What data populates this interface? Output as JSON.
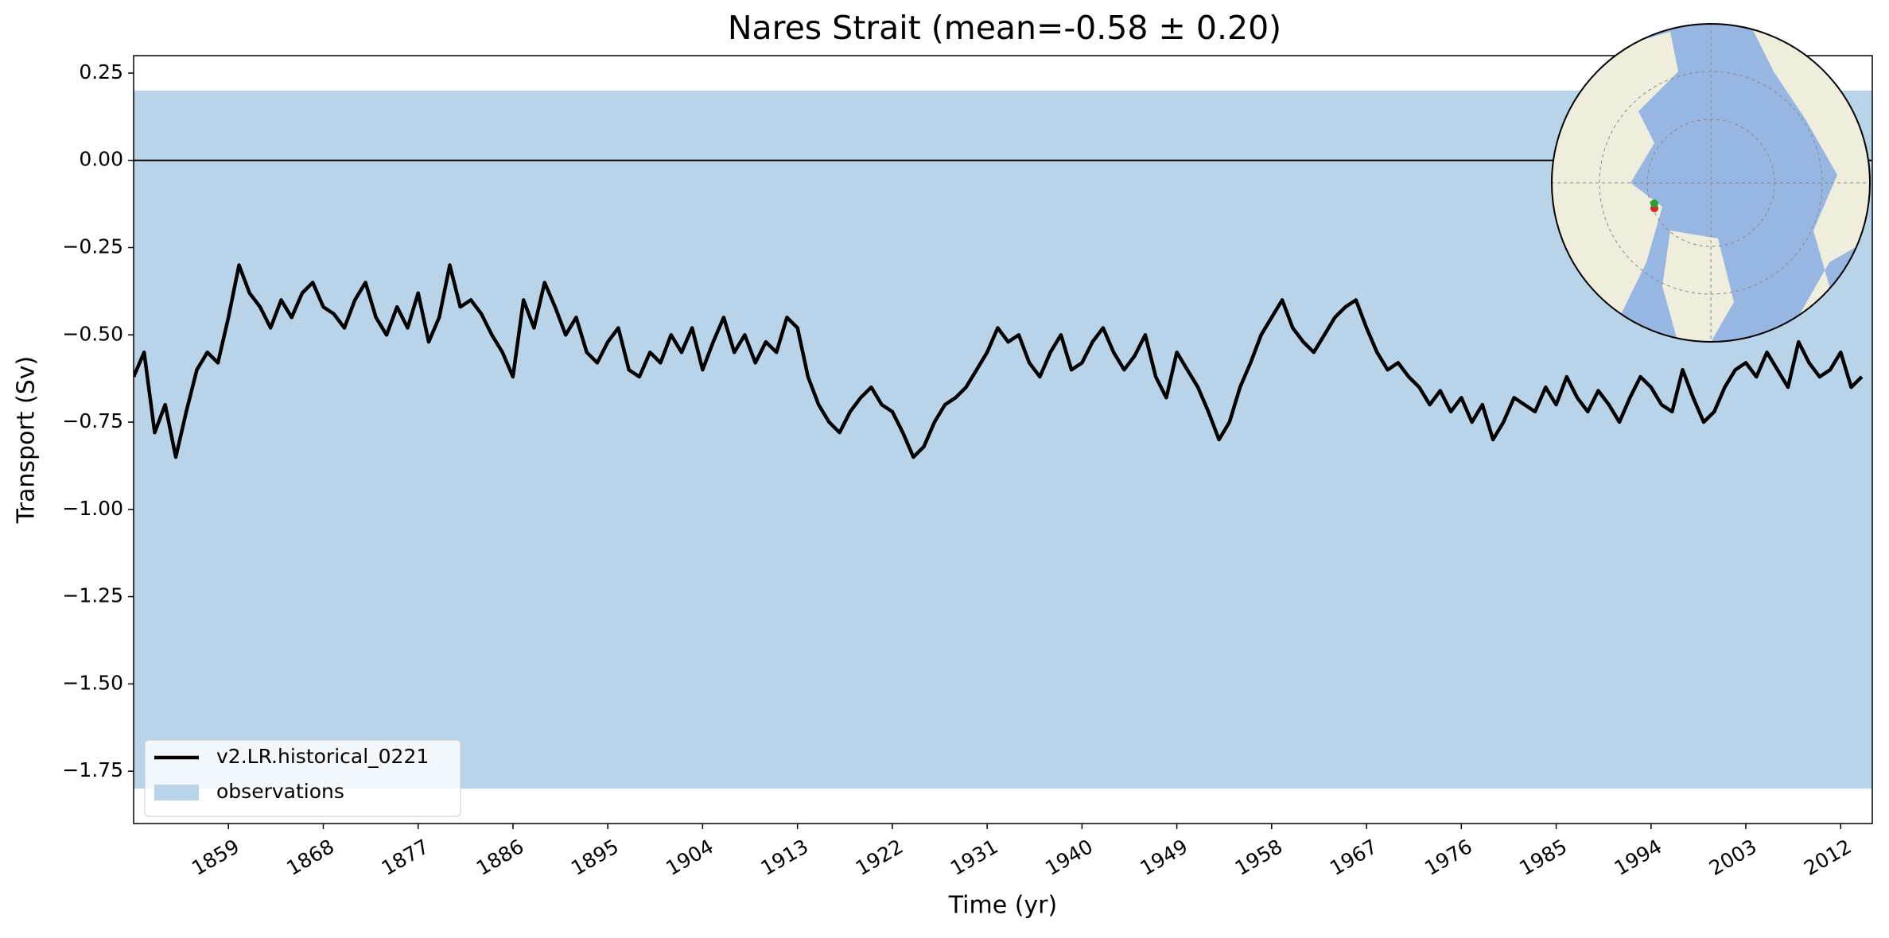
{
  "chart_data": {
    "type": "line",
    "title": "Nares Strait (mean=-0.58 ± 0.20)",
    "x_label": "Time (yr)",
    "y_label": "Transport (Sv)",
    "xlim": [
      1850,
      2015
    ],
    "ylim": [
      -1.9,
      0.3
    ],
    "xticks": [
      1859,
      1868,
      1877,
      1886,
      1895,
      1904,
      1913,
      1922,
      1931,
      1940,
      1949,
      1958,
      1967,
      1976,
      1985,
      1994,
      2003,
      2012
    ],
    "yticks": [
      0.25,
      {
        "value": 0,
        "label": "0.00"
      },
      {
        "value": -0.25,
        "label": "−0.25"
      },
      {
        "value": -0.5,
        "label": "−0.50"
      },
      {
        "value": -0.75,
        "label": "−0.75"
      },
      {
        "value": -1,
        "label": "−1.00"
      },
      {
        "value": -1.25,
        "label": "−1.25"
      },
      {
        "value": -1.5,
        "label": "−1.50"
      },
      {
        "value": -1.75,
        "label": "−1.75"
      }
    ],
    "hline": 0,
    "legend": "lower left",
    "band": {
      "name": "observations",
      "color": "#b9d4e8",
      "range": [
        -1.8,
        0.2
      ]
    },
    "x": [
      1850,
      1851,
      1852,
      1853,
      1854,
      1855,
      1856,
      1857,
      1858,
      1859,
      1860,
      1861,
      1862,
      1863,
      1864,
      1865,
      1866,
      1867,
      1868,
      1869,
      1870,
      1871,
      1872,
      1873,
      1874,
      1875,
      1876,
      1877,
      1878,
      1879,
      1880,
      1881,
      1882,
      1883,
      1884,
      1885,
      1886,
      1887,
      1888,
      1889,
      1890,
      1891,
      1892,
      1893,
      1894,
      1895,
      1896,
      1897,
      1898,
      1899,
      1900,
      1901,
      1902,
      1903,
      1904,
      1905,
      1906,
      1907,
      1908,
      1909,
      1910,
      1911,
      1912,
      1913,
      1914,
      1915,
      1916,
      1917,
      1918,
      1919,
      1920,
      1921,
      1922,
      1923,
      1924,
      1925,
      1926,
      1927,
      1928,
      1929,
      1930,
      1931,
      1932,
      1933,
      1934,
      1935,
      1936,
      1937,
      1938,
      1939,
      1940,
      1941,
      1942,
      1943,
      1944,
      1945,
      1946,
      1947,
      1948,
      1949,
      1950,
      1951,
      1952,
      1953,
      1954,
      1955,
      1956,
      1957,
      1958,
      1959,
      1960,
      1961,
      1962,
      1963,
      1964,
      1965,
      1966,
      1967,
      1968,
      1969,
      1970,
      1971,
      1972,
      1973,
      1974,
      1975,
      1976,
      1977,
      1978,
      1979,
      1980,
      1981,
      1982,
      1983,
      1984,
      1985,
      1986,
      1987,
      1988,
      1989,
      1990,
      1991,
      1992,
      1993,
      1994,
      1995,
      1996,
      1997,
      1998,
      1999,
      2000,
      2001,
      2002,
      2003,
      2004,
      2005,
      2006,
      2007,
      2008,
      2009,
      2010,
      2011,
      2012,
      2013,
      2014
    ],
    "series": [
      {
        "name": "v2.LR.historical_0221",
        "color": "#000000",
        "values": [
          -0.62,
          -0.55,
          -0.78,
          -0.7,
          -0.85,
          -0.72,
          -0.6,
          -0.55,
          -0.58,
          -0.45,
          -0.3,
          -0.38,
          -0.42,
          -0.48,
          -0.4,
          -0.45,
          -0.38,
          -0.35,
          -0.42,
          -0.44,
          -0.48,
          -0.4,
          -0.35,
          -0.45,
          -0.5,
          -0.42,
          -0.48,
          -0.38,
          -0.52,
          -0.45,
          -0.3,
          -0.42,
          -0.4,
          -0.44,
          -0.5,
          -0.55,
          -0.62,
          -0.4,
          -0.48,
          -0.35,
          -0.42,
          -0.5,
          -0.45,
          -0.55,
          -0.58,
          -0.52,
          -0.48,
          -0.6,
          -0.62,
          -0.55,
          -0.58,
          -0.5,
          -0.55,
          -0.48,
          -0.6,
          -0.52,
          -0.45,
          -0.55,
          -0.5,
          -0.58,
          -0.52,
          -0.55,
          -0.45,
          -0.48,
          -0.62,
          -0.7,
          -0.75,
          -0.78,
          -0.72,
          -0.68,
          -0.65,
          -0.7,
          -0.72,
          -0.78,
          -0.85,
          -0.82,
          -0.75,
          -0.7,
          -0.68,
          -0.65,
          -0.6,
          -0.55,
          -0.48,
          -0.52,
          -0.5,
          -0.58,
          -0.62,
          -0.55,
          -0.5,
          -0.6,
          -0.58,
          -0.52,
          -0.48,
          -0.55,
          -0.6,
          -0.56,
          -0.5,
          -0.62,
          -0.68,
          -0.55,
          -0.6,
          -0.65,
          -0.72,
          -0.8,
          -0.75,
          -0.65,
          -0.58,
          -0.5,
          -0.45,
          -0.4,
          -0.48,
          -0.52,
          -0.55,
          -0.5,
          -0.45,
          -0.42,
          -0.4,
          -0.48,
          -0.55,
          -0.6,
          -0.58,
          -0.62,
          -0.65,
          -0.7,
          -0.66,
          -0.72,
          -0.68,
          -0.75,
          -0.7,
          -0.8,
          -0.75,
          -0.68,
          -0.7,
          -0.72,
          -0.65,
          -0.7,
          -0.62,
          -0.68,
          -0.72,
          -0.66,
          -0.7,
          -0.75,
          -0.68,
          -0.62,
          -0.65,
          -0.7,
          -0.72,
          -0.6,
          -0.68,
          -0.75,
          -0.72,
          -0.65,
          -0.6,
          -0.58,
          -0.62,
          -0.55,
          -0.6,
          -0.65,
          -0.52,
          -0.58,
          -0.62,
          -0.6,
          -0.55,
          -0.65,
          -0.62
        ]
      }
    ]
  }
}
